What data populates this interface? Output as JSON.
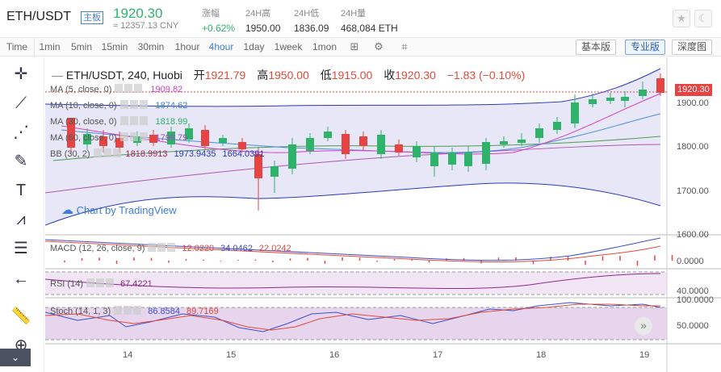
{
  "header": {
    "pair": "ETH/USDT",
    "badge": "主板",
    "last_price": "1920.30",
    "cny_price": "≈ 12357.13 CNY",
    "stats": [
      {
        "label": "涨幅",
        "value": "+0.62%"
      },
      {
        "label": "24H高",
        "value": "1950.00"
      },
      {
        "label": "24H低",
        "value": "1836.09"
      },
      {
        "label": "24H量",
        "value": "468,084 ETH"
      }
    ]
  },
  "toolbar": {
    "intervals": [
      "Time",
      "1min",
      "5min",
      "15min",
      "30min",
      "1hour",
      "4hour",
      "1day",
      "1week",
      "1mon"
    ],
    "active_interval": "4hour",
    "views": [
      "基本版",
      "专业版",
      "深度图"
    ],
    "active_view": "专业版"
  },
  "chart": {
    "title": "ETH/USDT, 240, Huobi",
    "ohlc": [
      {
        "label": "开",
        "value": "1921.79"
      },
      {
        "label": "高",
        "value": "1950.00"
      },
      {
        "label": "低",
        "value": "1915.00"
      },
      {
        "label": "收",
        "value": "1920.30"
      }
    ],
    "change": "−1.83 (−0.10%)",
    "indicators": [
      {
        "name": "MA (5, close, 0)",
        "values": [
          "1909.82"
        ],
        "colors": [
          "#d43fc4"
        ]
      },
      {
        "name": "MA (10, close, 0)",
        "values": [
          "1874.62"
        ],
        "colors": [
          "#3d7ddb"
        ]
      },
      {
        "name": "MA (30, close, 0)",
        "values": [
          "1818.99"
        ],
        "colors": [
          "#2db36a"
        ]
      },
      {
        "name": "MA (60, close, 0)",
        "values": [
          "1799.79"
        ],
        "colors": [
          "#9b4fb8"
        ]
      },
      {
        "name": "BB (30, 2)",
        "values": [
          "1818.9913",
          "1973.9435",
          "1664.0391"
        ],
        "colors": [
          "#b0245a",
          "#2b3bb8",
          "#2b3bb8"
        ]
      }
    ],
    "watermark": "Chart by TradingView",
    "current_price_label": "1920.30",
    "price_ticks": [
      "1900.00",
      "1800.00",
      "1700.00",
      "1600.00"
    ],
    "macd": {
      "name": "MACD (12, 26, close, 9)",
      "values": [
        "12.0220",
        "34.0462",
        "22.0242"
      ],
      "colors": [
        "#e24a3b",
        "#3d4fc8",
        "#e24a3b"
      ],
      "tick": "0.0000"
    },
    "rsi": {
      "name": "RSI (14)",
      "values": [
        "67.4221"
      ],
      "colors": [
        "#8b2b8b"
      ],
      "tick": "40.0000"
    },
    "stoch": {
      "name": "Stoch (14, 1, 3)",
      "values": [
        "86.8584",
        "89.7169"
      ],
      "colors": [
        "#3d4fc8",
        "#e24a3b"
      ],
      "ticks": [
        "100.0000",
        "50.0000"
      ]
    },
    "x_ticks": [
      "14",
      "15",
      "16",
      "17",
      "18",
      "19"
    ]
  },
  "colors": {
    "up": "#2db36a",
    "down": "#e64343",
    "accent": "#3d7ddb"
  }
}
